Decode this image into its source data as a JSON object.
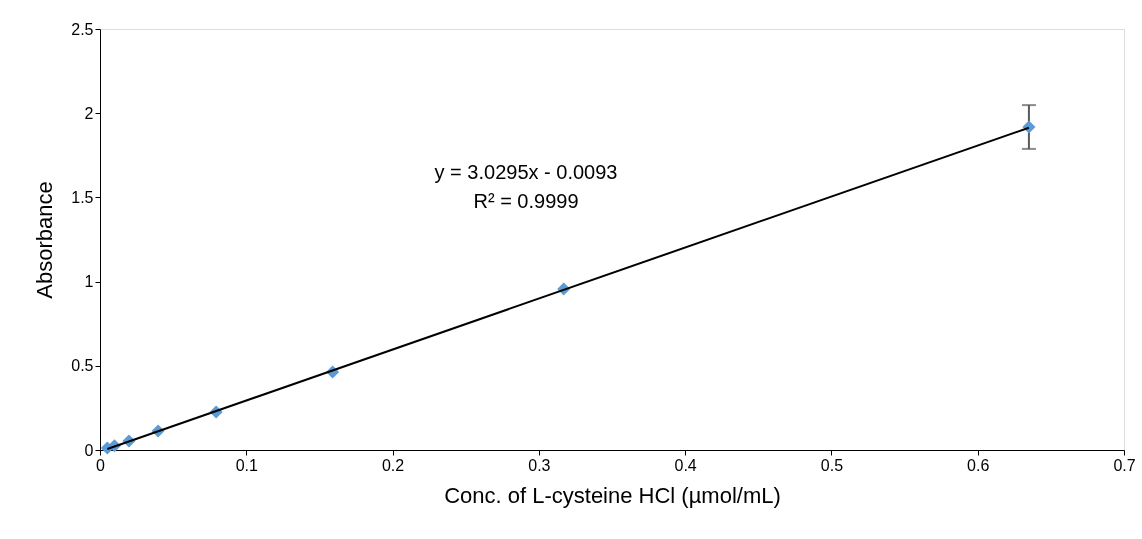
{
  "chart_data": {
    "type": "scatter",
    "xlabel": "Conc. of L-cysteine HCl (µmol/mL)",
    "ylabel": "Absorbance",
    "x": [
      0.005,
      0.0099,
      0.0198,
      0.0397,
      0.0794,
      0.159,
      0.317,
      0.635
    ],
    "series": [
      {
        "color": "#5b9bd5",
        "marker": "diamond",
        "values": [
          0.012,
          0.025,
          0.053,
          0.113,
          0.226,
          0.463,
          0.956,
          1.918
        ],
        "errors": [
          null,
          null,
          null,
          null,
          null,
          null,
          null,
          0.13
        ]
      },
      {
        "type": "line",
        "color": "#000000",
        "x": [
          0.005,
          0.635
        ],
        "values": [
          0.006,
          1.914
        ],
        "line_style": "solid"
      }
    ],
    "annotations": [
      "y = 3.0295x - 0.0093",
      "R² = 0.9999"
    ],
    "xlim": [
      0,
      0.7
    ],
    "xticks": [
      0,
      0.1,
      0.2,
      0.3,
      0.4,
      0.5,
      0.6,
      0.7
    ],
    "ylim": [
      0,
      2.5
    ],
    "yticks": [
      0,
      0.5,
      1,
      1.5,
      2,
      2.5
    ],
    "grid": false
  }
}
